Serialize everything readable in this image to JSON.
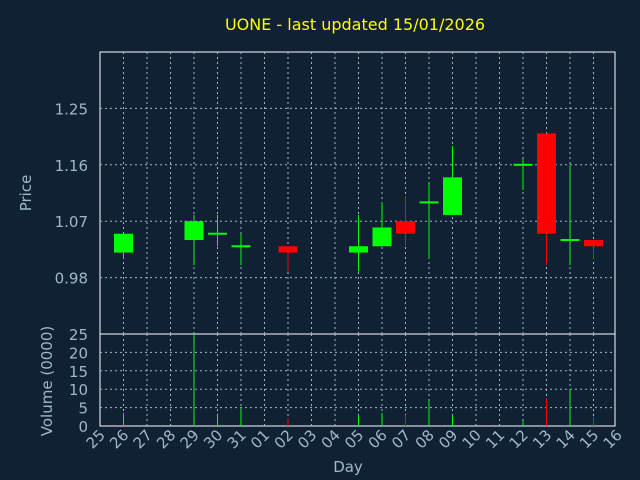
{
  "chart_data": {
    "type": "candlestick",
    "title": "UONE - last updated 15/01/2026",
    "xlabel": "Day",
    "price_panel": {
      "ylabel": "Price",
      "ylim": [
        0.89,
        1.34
      ],
      "yticks": [
        "0.98",
        "1.07",
        "1.16",
        "1.25"
      ],
      "ytick_values": [
        0.98,
        1.07,
        1.16,
        1.25
      ],
      "grid": true
    },
    "volume_panel": {
      "ylabel": "Volume (0000)",
      "ylim": [
        0,
        25
      ],
      "yticks": [
        "0",
        "5",
        "10",
        "15",
        "20",
        "25"
      ],
      "ytick_values": [
        0,
        5,
        10,
        15,
        20,
        25
      ],
      "grid": true
    },
    "x_labels": [
      "25",
      "26",
      "27",
      "28",
      "29",
      "30",
      "31",
      "01",
      "02",
      "03",
      "04",
      "05",
      "06",
      "07",
      "08",
      "09",
      "10",
      "11",
      "12",
      "13",
      "14",
      "15",
      "16"
    ],
    "colors": {
      "up": "#00ff00",
      "down": "#ff0000",
      "grid": "#9fb8cc",
      "axis": "#ffffff"
    },
    "candles": [
      {
        "day": "26",
        "open": 1.02,
        "high": 1.05,
        "low": 1.01,
        "close": 1.05,
        "volume": 3.5
      },
      {
        "day": "29",
        "open": 1.04,
        "high": 1.08,
        "low": 1.0,
        "close": 1.07,
        "volume": 25
      },
      {
        "day": "30",
        "open": 1.05,
        "high": 1.08,
        "low": 1.03,
        "close": 1.05,
        "volume": 3
      },
      {
        "day": "31",
        "open": 1.03,
        "high": 1.05,
        "low": 1.0,
        "close": 1.03,
        "volume": 5
      },
      {
        "day": "02",
        "open": 1.03,
        "high": 1.03,
        "low": 0.99,
        "close": 1.02,
        "volume": 2
      },
      {
        "day": "05",
        "open": 1.02,
        "high": 1.08,
        "low": 0.99,
        "close": 1.03,
        "volume": 3
      },
      {
        "day": "06",
        "open": 1.03,
        "high": 1.1,
        "low": 1.03,
        "close": 1.06,
        "volume": 3.5
      },
      {
        "day": "07",
        "open": 1.07,
        "high": 1.11,
        "low": 1.03,
        "close": 1.05,
        "volume": 3
      },
      {
        "day": "08",
        "open": 1.1,
        "high": 1.13,
        "low": 1.01,
        "close": 1.1,
        "volume": 7
      },
      {
        "day": "09",
        "open": 1.08,
        "high": 1.19,
        "low": 1.08,
        "close": 1.14,
        "volume": 3
      },
      {
        "day": "12",
        "open": 1.16,
        "high": 1.17,
        "low": 1.12,
        "close": 1.16,
        "volume": 1.5
      },
      {
        "day": "13",
        "open": 1.21,
        "high": 1.21,
        "low": 1.0,
        "close": 1.05,
        "volume": 7.5
      },
      {
        "day": "14",
        "open": 1.04,
        "high": 1.16,
        "low": 1.0,
        "close": 1.04,
        "volume": 10
      },
      {
        "day": "15",
        "open": 1.04,
        "high": 1.04,
        "low": 1.01,
        "close": 1.03,
        "volume": 2.5
      }
    ]
  }
}
